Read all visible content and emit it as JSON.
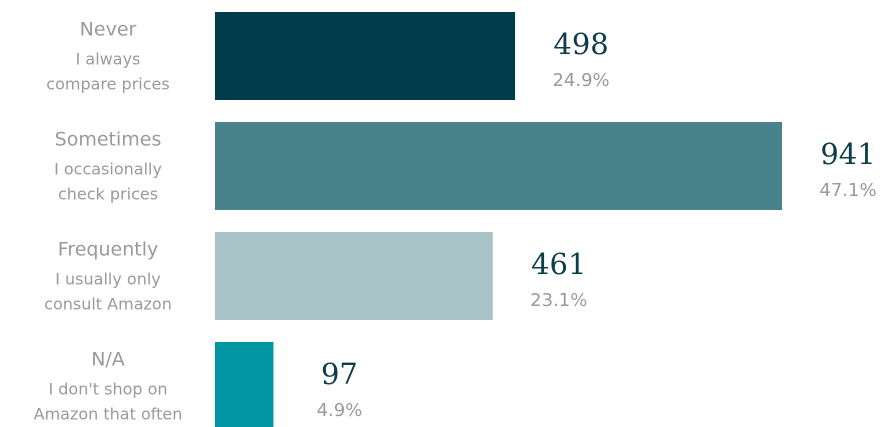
{
  "chart_data": {
    "type": "bar",
    "orientation": "horizontal",
    "categories": [
      "Never",
      "Sometimes",
      "Frequently",
      "N/A"
    ],
    "descriptions": [
      [
        "I always",
        "compare prices"
      ],
      [
        "I occasionally",
        "check prices"
      ],
      [
        "I usually only",
        "consult Amazon"
      ],
      [
        "I don't shop on",
        "Amazon that often"
      ]
    ],
    "values": [
      498,
      941,
      461,
      97
    ],
    "share_labels": [
      "24.9%",
      "47.1%",
      "23.1%",
      "4.9%"
    ],
    "colors": [
      "#003b4a",
      "#4a828b",
      "#a9c4c8",
      "#0096a3"
    ]
  }
}
